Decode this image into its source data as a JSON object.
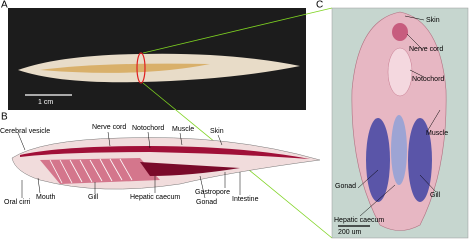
{
  "panel_a": {
    "label": "A",
    "scale_bar": "1 cm"
  },
  "panel_b": {
    "label": "B",
    "labels": [
      "Cerebral vesicle",
      "Nerve cord",
      "Notochord",
      "Muscle",
      "Skin",
      "Mouth",
      "Oral cirri",
      "Gill",
      "Hepatic caecum",
      "Gonad",
      "Gastropore",
      "Intestine"
    ]
  },
  "panel_c": {
    "label": "C",
    "labels": [
      "Skin",
      "Nerve cord",
      "Notochord",
      "Muscle",
      "Gonad",
      "Gill",
      "Hepatic caecum"
    ],
    "scale_bar": "200 um"
  }
}
